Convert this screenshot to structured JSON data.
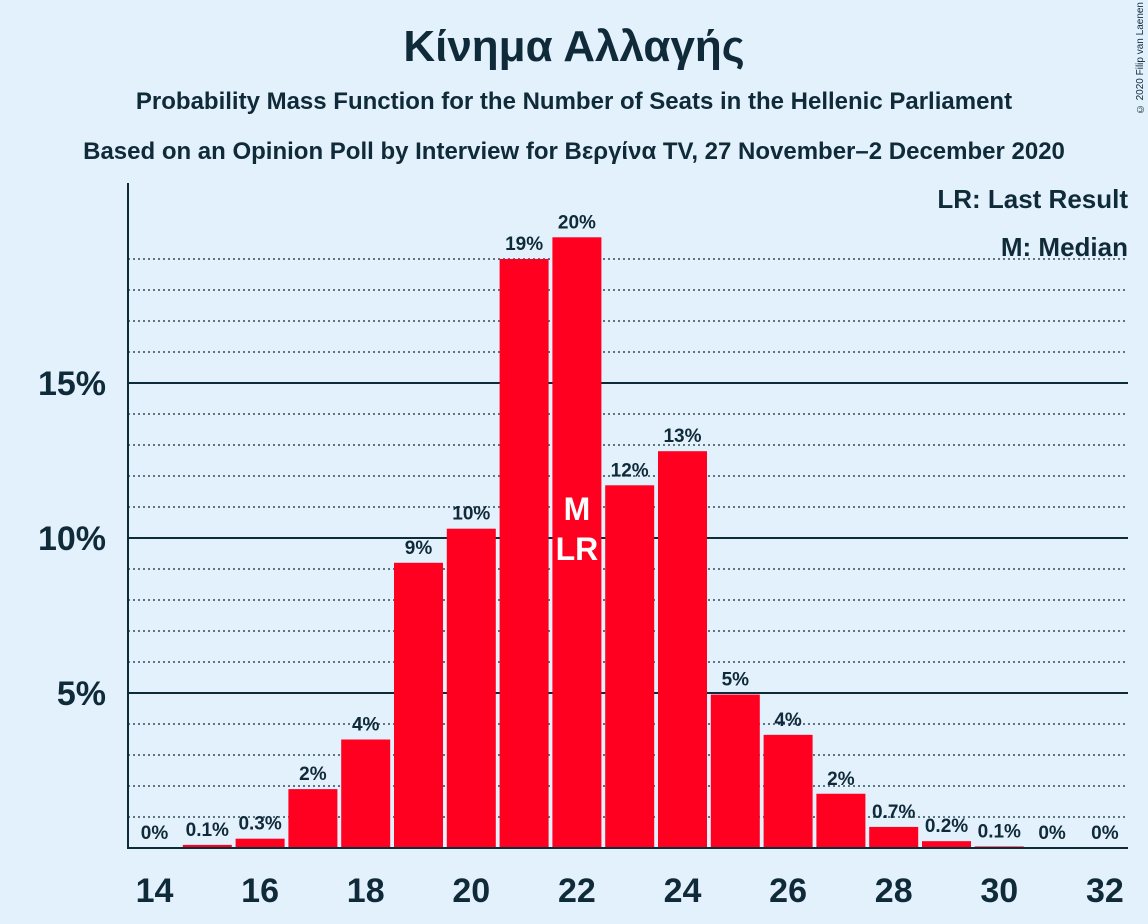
{
  "header": {
    "title": "Κίνημα Αλλαγής",
    "subtitle": "Probability Mass Function for the Number of Seats in the Hellenic Parliament",
    "subtitle2": "Based on an Opinion Poll by Interview for Βεργίνα TV, 27 November–2 December 2020",
    "copyright": "© 2020 Filip van Laenen"
  },
  "legend": {
    "last_result": "LR: Last Result",
    "median": "M: Median"
  },
  "colors": {
    "bar": "#ff0020",
    "background": "#e3f1fd",
    "text": "#0f2a38",
    "marker_text": "#ffffff"
  },
  "chart_data": {
    "type": "bar",
    "title": "Κίνημα Αλλαγής",
    "xlabel": "",
    "ylabel": "",
    "x": [
      14,
      15,
      16,
      17,
      18,
      19,
      20,
      21,
      22,
      23,
      24,
      25,
      26,
      27,
      28,
      29,
      30,
      31,
      32
    ],
    "values": [
      0,
      0.1,
      0.3,
      1.9,
      3.5,
      9.2,
      10.3,
      19.0,
      19.7,
      11.7,
      12.8,
      4.95,
      3.65,
      1.75,
      0.68,
      0.22,
      0.05,
      0,
      0
    ],
    "labels": [
      "0%",
      "0.1%",
      "0.3%",
      "2%",
      "4%",
      "9%",
      "10%",
      "19%",
      "20%",
      "12%",
      "13%",
      "5%",
      "4%",
      "2%",
      "0.7%",
      "0.2%",
      "0.1%",
      "0%",
      "0%"
    ],
    "x_ticks": [
      "14",
      "16",
      "18",
      "20",
      "22",
      "24",
      "26",
      "28",
      "30",
      "32"
    ],
    "y_ticks": [
      {
        "value": 5,
        "label": "5%"
      },
      {
        "value": 10,
        "label": "10%"
      },
      {
        "value": 15,
        "label": "15%"
      }
    ],
    "ylim": [
      0,
      21.4
    ],
    "minor_gridlines": [
      1,
      2,
      3,
      4,
      6,
      7,
      8,
      9,
      11,
      12,
      13,
      14,
      16,
      17,
      18,
      19
    ],
    "median_seat": 22,
    "last_result_seat": 22,
    "markers": {
      "median": "M",
      "last_result": "LR"
    },
    "legend_position": "top-right"
  }
}
